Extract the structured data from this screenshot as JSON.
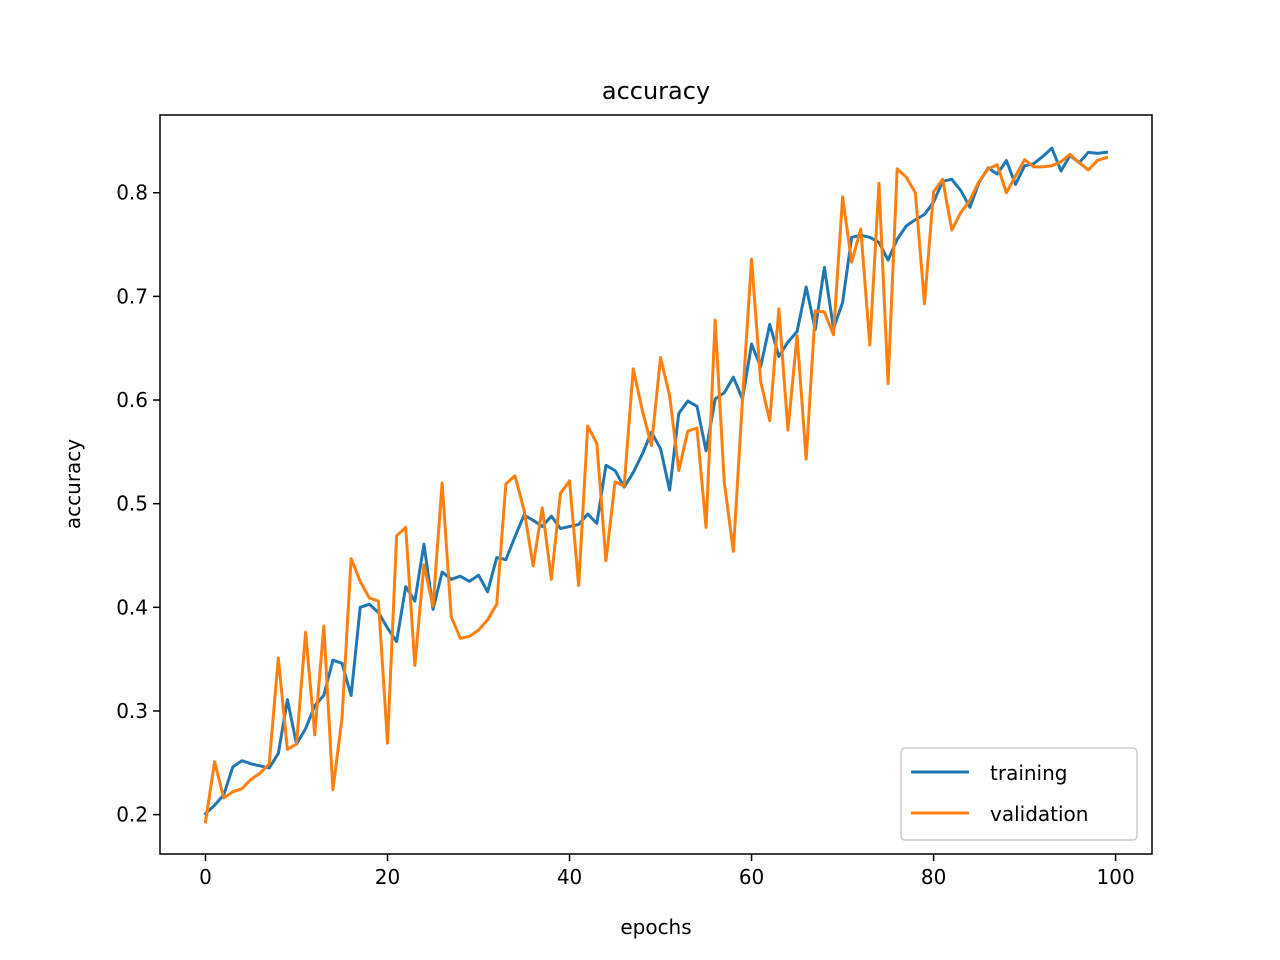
{
  "chart_data": {
    "type": "line",
    "title": "accuracy",
    "xlabel": "epochs",
    "ylabel": "accuracy",
    "xlim": [
      -5,
      104
    ],
    "ylim": [
      0.162,
      0.875
    ],
    "xticks": [
      0,
      20,
      40,
      60,
      80,
      100
    ],
    "yticks": [
      0.2,
      0.3,
      0.4,
      0.5,
      0.6,
      0.7,
      0.8
    ],
    "xtick_labels": [
      "0",
      "20",
      "40",
      "60",
      "80",
      "100"
    ],
    "ytick_labels": [
      "0.2",
      "0.3",
      "0.4",
      "0.5",
      "0.6",
      "0.7",
      "0.8"
    ],
    "grid": false,
    "legend_position": "lower-right",
    "x": [
      0,
      1,
      2,
      3,
      4,
      5,
      6,
      7,
      8,
      9,
      10,
      11,
      12,
      13,
      14,
      15,
      16,
      17,
      18,
      19,
      20,
      21,
      22,
      23,
      24,
      25,
      26,
      27,
      28,
      29,
      30,
      31,
      32,
      33,
      34,
      35,
      36,
      37,
      38,
      39,
      40,
      41,
      42,
      43,
      44,
      45,
      46,
      47,
      48,
      49,
      50,
      51,
      52,
      53,
      54,
      55,
      56,
      57,
      58,
      59,
      60,
      61,
      62,
      63,
      64,
      65,
      66,
      67,
      68,
      69,
      70,
      71,
      72,
      73,
      74,
      75,
      76,
      77,
      78,
      79,
      80,
      81,
      82,
      83,
      84,
      85,
      86,
      87,
      88,
      89,
      90,
      91,
      92,
      93,
      94,
      95,
      96,
      97,
      98,
      99
    ],
    "series": [
      {
        "name": "training",
        "color": "#1f77b4",
        "values": [
          0.201,
          0.209,
          0.219,
          0.246,
          0.252,
          0.249,
          0.247,
          0.245,
          0.259,
          0.311,
          0.268,
          0.283,
          0.305,
          0.315,
          0.349,
          0.346,
          0.315,
          0.4,
          0.403,
          0.395,
          0.38,
          0.367,
          0.42,
          0.406,
          0.461,
          0.398,
          0.434,
          0.427,
          0.43,
          0.425,
          0.431,
          0.415,
          0.448,
          0.446,
          0.468,
          0.489,
          0.484,
          0.478,
          0.488,
          0.476,
          0.478,
          0.48,
          0.49,
          0.481,
          0.537,
          0.532,
          0.516,
          0.53,
          0.548,
          0.569,
          0.553,
          0.513,
          0.587,
          0.599,
          0.594,
          0.551,
          0.601,
          0.607,
          0.622,
          0.601,
          0.654,
          0.632,
          0.673,
          0.642,
          0.656,
          0.666,
          0.709,
          0.668,
          0.728,
          0.669,
          0.694,
          0.757,
          0.759,
          0.757,
          0.752,
          0.735,
          0.755,
          0.768,
          0.774,
          0.779,
          0.791,
          0.811,
          0.813,
          0.802,
          0.786,
          0.81,
          0.824,
          0.818,
          0.831,
          0.808,
          0.826,
          0.828,
          0.835,
          0.843,
          0.821,
          0.836,
          0.829,
          0.839,
          0.838,
          0.839
        ]
      },
      {
        "name": "validation",
        "color": "#ff7f0e",
        "values": [
          0.193,
          0.251,
          0.216,
          0.222,
          0.225,
          0.234,
          0.24,
          0.249,
          0.351,
          0.263,
          0.268,
          0.376,
          0.277,
          0.382,
          0.224,
          0.293,
          0.447,
          0.425,
          0.409,
          0.406,
          0.269,
          0.469,
          0.477,
          0.344,
          0.441,
          0.401,
          0.52,
          0.391,
          0.37,
          0.372,
          0.378,
          0.388,
          0.403,
          0.519,
          0.527,
          0.494,
          0.44,
          0.496,
          0.427,
          0.51,
          0.522,
          0.421,
          0.575,
          0.558,
          0.445,
          0.521,
          0.517,
          0.63,
          0.59,
          0.556,
          0.641,
          0.604,
          0.532,
          0.57,
          0.573,
          0.477,
          0.677,
          0.521,
          0.454,
          0.6,
          0.736,
          0.618,
          0.58,
          0.688,
          0.571,
          0.662,
          0.543,
          0.686,
          0.685,
          0.663,
          0.796,
          0.733,
          0.765,
          0.653,
          0.809,
          0.616,
          0.823,
          0.815,
          0.8,
          0.693,
          0.801,
          0.813,
          0.764,
          0.781,
          0.793,
          0.811,
          0.823,
          0.827,
          0.8,
          0.816,
          0.832,
          0.825,
          0.825,
          0.826,
          0.83,
          0.837,
          0.829,
          0.822,
          0.831,
          0.834
        ]
      }
    ]
  }
}
